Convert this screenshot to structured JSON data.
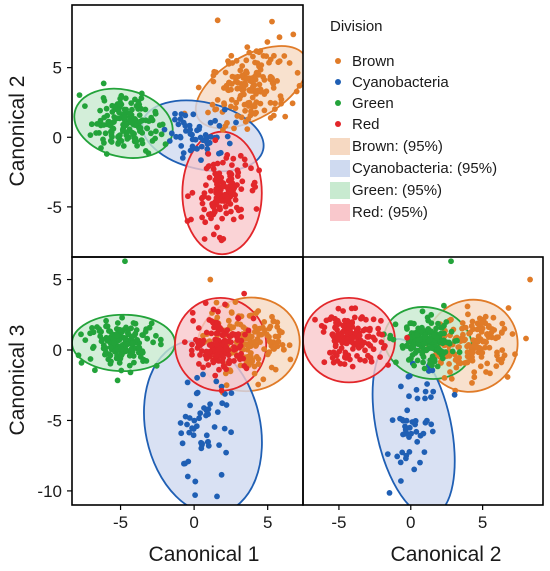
{
  "chart_data": {
    "type": "scatter",
    "title": "",
    "colors": {
      "Brown": "#e07b28",
      "Cyanobacteria": "#1f5fb4",
      "Green": "#23a33a",
      "Red": "#e2262a"
    },
    "ellipse_fills": {
      "Brown": "#f6d9c2",
      "Cyanobacteria": "#cfdaf0",
      "Green": "#c8ead0",
      "Red": "#f9c8cc"
    },
    "legend": {
      "title": "Division",
      "placement": "top-right",
      "points": [
        "Brown",
        "Cyanobacteria",
        "Green",
        "Red"
      ],
      "ellipses": [
        "Brown: (95%)",
        "Cyanobacteria: (95%)",
        "Green: (95%)",
        "Red: (95%)"
      ]
    },
    "axes": {
      "canonical1": {
        "label": "Canonical 1",
        "range": [
          -8.3,
          7.4
        ],
        "ticks": [
          -5,
          0,
          5
        ],
        "tick_labels": [
          "-5",
          "0",
          "5"
        ]
      },
      "canonical2_x": {
        "label": "Canonical 2",
        "range": [
          -7.5,
          9.2
        ],
        "ticks": [
          -5,
          0,
          5
        ],
        "tick_labels": [
          "-5",
          "0",
          "5"
        ]
      },
      "canonical2_y": {
        "label": "Canonical 2",
        "range": [
          -8.6,
          9.5
        ],
        "ticks": [
          5,
          0,
          -5
        ],
        "tick_labels": [
          "5",
          "0",
          "-5"
        ]
      },
      "canonical3_y": {
        "label": "Canonical 3",
        "range": [
          -11.0,
          6.6
        ],
        "ticks": [
          5,
          0,
          -5,
          -10
        ],
        "tick_labels": [
          "5",
          "0",
          "-5",
          "-10"
        ]
      }
    },
    "panels": [
      {
        "name": "canonical1-vs-canonical2",
        "x_axis": "canonical1",
        "y_axis": "canonical2_y",
        "show_x_ticks": false,
        "groups": [
          {
            "name": "Brown",
            "center": [
              3.9,
              3.6
            ],
            "spread": [
              1.4,
              1.5
            ],
            "corr": 0.35,
            "n": 160,
            "ellipse": {
              "center": [
                3.9,
                3.6
              ],
              "rx": 4.2,
              "ry": 2.25,
              "angle_deg": 30
            }
          },
          {
            "name": "Cyanobacteria",
            "center": [
              0.4,
              0.3
            ],
            "spread": [
              1.2,
              1.0
            ],
            "corr": -0.2,
            "n": 55,
            "ellipse": {
              "center": [
                0.6,
                0.1
              ],
              "rx": 4.2,
              "ry": 2.4,
              "angle_deg": -13
            }
          },
          {
            "name": "Green",
            "center": [
              -4.8,
              1.0
            ],
            "spread": [
              1.1,
              1.0
            ],
            "corr": -0.15,
            "n": 155,
            "ellipse": {
              "center": [
                -4.8,
                1.0
              ],
              "rx": 3.4,
              "ry": 2.4,
              "angle_deg": -14
            }
          },
          {
            "name": "Red",
            "center": [
              1.8,
              -4.0
            ],
            "spread": [
              0.9,
              1.3
            ],
            "corr": 0.1,
            "n": 140,
            "ellipse": {
              "center": [
                1.9,
                -4.0
              ],
              "rx": 2.7,
              "ry": 4.4,
              "angle_deg": 0
            }
          }
        ],
        "extra_points": [
          {
            "name": "Brown",
            "x": 1.6,
            "y": 8.4
          }
        ]
      },
      {
        "name": "canonical1-vs-canonical3",
        "x_axis": "canonical1",
        "y_axis": "canonical3_y",
        "show_x_ticks": true,
        "groups": [
          {
            "name": "Brown",
            "center": [
              3.6,
              0.4
            ],
            "spread": [
              1.4,
              1.1
            ],
            "corr": 0.1,
            "n": 160,
            "ellipse": {
              "center": [
                3.7,
                0.4
              ],
              "rx": 3.5,
              "ry": 3.3,
              "angle_deg": 15
            }
          },
          {
            "name": "Cyanobacteria",
            "center": [
              0.5,
              -5.7
            ],
            "spread": [
              1.0,
              1.9
            ],
            "corr": 0.1,
            "n": 55,
            "ellipse": {
              "center": [
                0.6,
                -5.5
              ],
              "rx": 3.9,
              "ry": 6.2,
              "angle_deg": 12
            }
          },
          {
            "name": "Green",
            "center": [
              -4.8,
              0.5
            ],
            "spread": [
              1.2,
              0.8
            ],
            "corr": 0.0,
            "n": 155,
            "ellipse": {
              "center": [
                -4.8,
                0.5
              ],
              "rx": 3.5,
              "ry": 2.0,
              "angle_deg": 0
            }
          },
          {
            "name": "Red",
            "center": [
              1.8,
              0.5
            ],
            "spread": [
              0.9,
              1.0
            ],
            "corr": 0.0,
            "n": 140,
            "ellipse": {
              "center": [
                1.8,
                0.4
              ],
              "rx": 3.1,
              "ry": 3.3,
              "angle_deg": 0
            }
          }
        ],
        "extra_points": [
          {
            "name": "Green",
            "x": -4.7,
            "y": 6.3
          },
          {
            "name": "Brown",
            "x": 1.1,
            "y": 5.0
          },
          {
            "name": "Red",
            "x": 3.4,
            "y": 4.0
          }
        ]
      },
      {
        "name": "canonical2-vs-canonical3",
        "x_axis": "canonical2_x",
        "y_axis": "canonical3_y",
        "show_x_ticks": true,
        "groups": [
          {
            "name": "Brown",
            "center": [
              4.2,
              0.3
            ],
            "spread": [
              1.4,
              1.1
            ],
            "corr": 0.2,
            "n": 160,
            "ellipse": {
              "center": [
                4.2,
                0.3
              ],
              "rx": 3.3,
              "ry": 3.2,
              "angle_deg": 40
            }
          },
          {
            "name": "Cyanobacteria",
            "center": [
              0.2,
              -5.5
            ],
            "spread": [
              0.8,
              1.9
            ],
            "corr": 0.25,
            "n": 55,
            "ellipse": {
              "center": [
                0.2,
                -5.5
              ],
              "rx": 2.6,
              "ry": 6.4,
              "angle_deg": 12
            }
          },
          {
            "name": "Green",
            "center": [
              1.1,
              0.5
            ],
            "spread": [
              1.0,
              0.8
            ],
            "corr": 0.0,
            "n": 155,
            "ellipse": {
              "center": [
                1.2,
                0.5
              ],
              "rx": 3.1,
              "ry": 2.5,
              "angle_deg": -15
            }
          },
          {
            "name": "Red",
            "center": [
              -4.2,
              0.8
            ],
            "spread": [
              1.1,
              0.9
            ],
            "corr": 0.0,
            "n": 140,
            "ellipse": {
              "center": [
                -4.3,
                0.7
              ],
              "rx": 3.2,
              "ry": 3.0,
              "angle_deg": 0
            }
          }
        ],
        "extra_points": [
          {
            "name": "Green",
            "x": 2.8,
            "y": 6.3
          },
          {
            "name": "Brown",
            "x": 8.3,
            "y": 5.0
          }
        ]
      }
    ]
  }
}
